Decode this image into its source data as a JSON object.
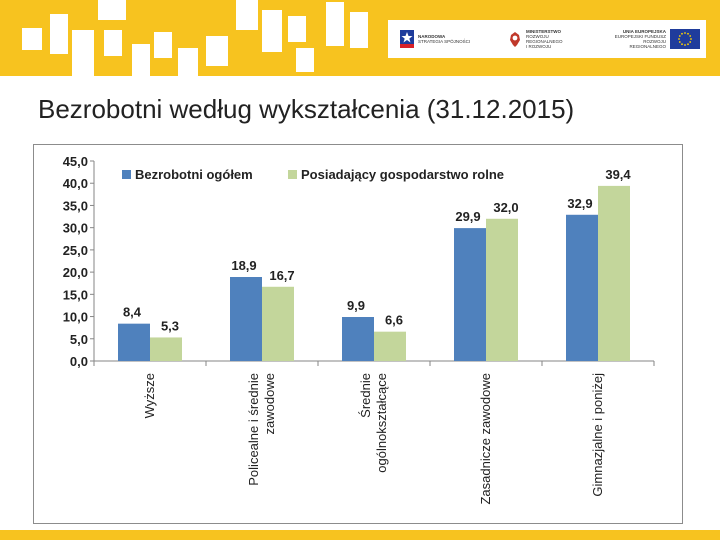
{
  "slide": {
    "title": "Bezrobotni według wykształcenia (31.12.2015)"
  },
  "logos": {
    "fund_title": "NARODOWA",
    "fund_sub": "STRATEGIA SPÓJNOŚCI",
    "ministry_title": "MINISTERSTWO",
    "ministry_line2": "ROZWOJU REGIONALNEGO",
    "ministry_line3": "I ROZWOJU",
    "eu_title": "UNIA EUROPEJSKA",
    "eu_line2": "EUROPEJSKI FUNDUSZ",
    "eu_line3": "ROZWOJU REGIONALNEGO"
  },
  "colors": {
    "banner": "#f7c31f",
    "series1": "#4f81bd",
    "series2": "#c3d69b"
  },
  "chart_data": {
    "type": "bar",
    "title": "",
    "xlabel": "",
    "ylabel": "",
    "ylim": [
      0,
      45
    ],
    "yticks": [
      "0,0",
      "5,0",
      "10,0",
      "15,0",
      "20,0",
      "25,0",
      "30,0",
      "35,0",
      "40,0",
      "45,0"
    ],
    "categories": [
      [
        "Wyższe"
      ],
      [
        "Policealne i średnie",
        "zawodowe"
      ],
      [
        "Średnie",
        "ogólnokształcące"
      ],
      [
        "Zasadnicze zawodowe"
      ],
      [
        "Gimnazjalne i poniżej"
      ]
    ],
    "series": [
      {
        "name": "Bezrobotni ogółem",
        "color": "#4f81bd",
        "values": [
          8.4,
          18.9,
          9.9,
          29.9,
          32.9
        ],
        "labels": [
          "8,4",
          "18,9",
          "9,9",
          "29,9",
          "32,9"
        ]
      },
      {
        "name": "Posiadający gospodarstwo  rolne",
        "color": "#c3d69b",
        "values": [
          5.3,
          16.7,
          6.6,
          32.0,
          39.4
        ],
        "labels": [
          "5,3",
          "16,7",
          "6,6",
          "32,0",
          "39,4"
        ]
      }
    ],
    "legend_position": "top"
  }
}
